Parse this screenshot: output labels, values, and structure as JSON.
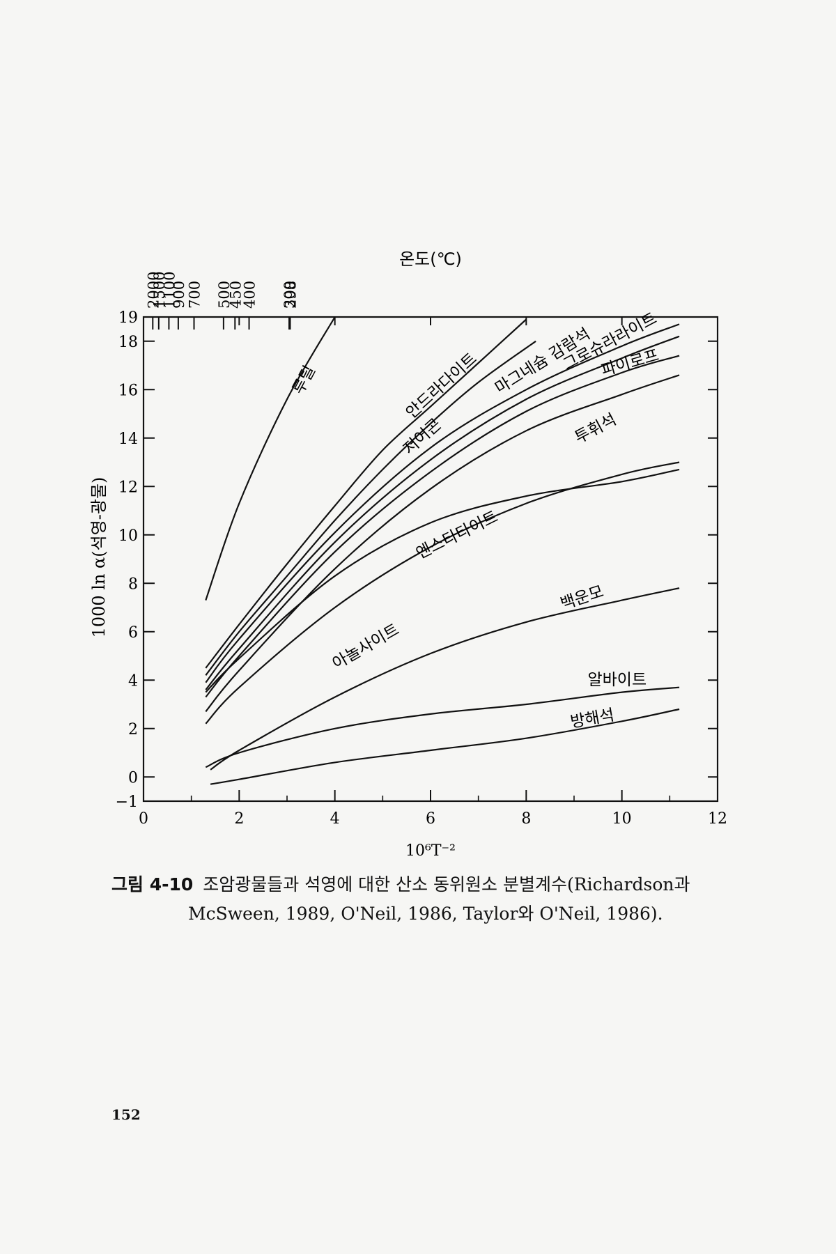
{
  "figure": {
    "caption_number": "그림 4-10",
    "caption_line1": "조암광물들과 석영에 대한 산소 동위원소 분별계수(Richardson과",
    "caption_line2": "McSween, 1989, O'Neil, 1986, Taylor와 O'Neil, 1986).",
    "page_number": "152"
  },
  "chart_data": {
    "type": "line",
    "title": "",
    "top_axis_title": "온도(℃)",
    "top_ticks": [
      "2000",
      "1500",
      "1100",
      "900",
      "700",
      "500",
      "450",
      "400",
      "300",
      "298"
    ],
    "xlabel": "10⁶T⁻²",
    "ylabel": "1000 ln α(석영-광물)",
    "xlim": [
      0,
      12
    ],
    "ylim": [
      -1,
      19
    ],
    "x_ticks": [
      "0",
      "2",
      "4",
      "6",
      "8",
      "10",
      "12"
    ],
    "y_ticks": [
      "−1",
      "0",
      "2",
      "4",
      "6",
      "8",
      "10",
      "12",
      "14",
      "16",
      "18",
      "19"
    ],
    "grid": false,
    "series": [
      {
        "name": "루틸",
        "x": [
          1.3,
          2.0,
          3.0,
          4.0
        ],
        "y": [
          7.3,
          11.3,
          15.6,
          19.0
        ]
      },
      {
        "name": "안드라다이트",
        "x": [
          1.3,
          2.0,
          3.0,
          4.0,
          5.0,
          6.0,
          7.0,
          8.0
        ],
        "y": [
          4.5,
          6.3,
          8.8,
          11.2,
          13.5,
          15.3,
          17.1,
          18.9
        ]
      },
      {
        "name": "저어콘",
        "x": [
          1.3,
          2.0,
          3.0,
          4.0,
          5.0,
          6.0,
          7.0,
          8.2
        ],
        "y": [
          4.2,
          6.0,
          8.3,
          10.6,
          12.7,
          14.6,
          16.3,
          18.0
        ]
      },
      {
        "name": "마그네슘 감람석",
        "x": [
          1.3,
          2.0,
          4.0,
          6.0,
          8.0,
          10.0,
          11.2
        ],
        "y": [
          3.9,
          5.7,
          10.1,
          13.6,
          16.0,
          17.8,
          18.7
        ]
      },
      {
        "name": "그로슈라라이트",
        "x": [
          1.3,
          2.0,
          4.0,
          6.0,
          8.0,
          10.0,
          11.2
        ],
        "y": [
          3.6,
          5.3,
          9.7,
          13.1,
          15.6,
          17.3,
          18.2
        ]
      },
      {
        "name": "파이로프",
        "x": [
          1.3,
          2.0,
          4.0,
          6.0,
          8.0,
          10.0,
          11.2
        ],
        "y": [
          3.3,
          5.0,
          9.3,
          12.6,
          15.1,
          16.7,
          17.4
        ]
      },
      {
        "name": "투휘석",
        "x": [
          1.3,
          2.0,
          4.0,
          6.0,
          8.0,
          10.0,
          11.2
        ],
        "y": [
          2.7,
          4.4,
          8.6,
          11.9,
          14.3,
          15.8,
          16.6
        ]
      },
      {
        "name": "아놀사이트",
        "x": [
          1.3,
          2.0,
          4.0,
          6.0,
          8.0,
          10.0,
          11.2
        ],
        "y": [
          2.2,
          3.7,
          7.0,
          9.5,
          11.3,
          12.5,
          13.0
        ]
      },
      {
        "name": "엔스타타이트",
        "x": [
          1.3,
          2.0,
          4.0,
          6.0,
          8.0,
          10.0,
          11.2
        ],
        "y": [
          3.5,
          4.9,
          8.3,
          10.5,
          11.6,
          12.2,
          12.7
        ]
      },
      {
        "name": "백운모",
        "x": [
          1.4,
          2.0,
          4.0,
          6.0,
          8.0,
          10.0,
          11.2
        ],
        "y": [
          0.3,
          1.1,
          3.3,
          5.1,
          6.4,
          7.3,
          7.8
        ]
      },
      {
        "name": "알바이트",
        "x": [
          1.3,
          2.0,
          4.0,
          6.0,
          8.0,
          10.0,
          11.2
        ],
        "y": [
          0.4,
          1.0,
          2.0,
          2.6,
          3.0,
          3.5,
          3.7
        ]
      },
      {
        "name": "방해석",
        "x": [
          1.4,
          2.0,
          4.0,
          6.0,
          8.0,
          10.0,
          11.2
        ],
        "y": [
          -0.3,
          -0.1,
          0.6,
          1.1,
          1.6,
          2.3,
          2.8
        ]
      }
    ]
  }
}
